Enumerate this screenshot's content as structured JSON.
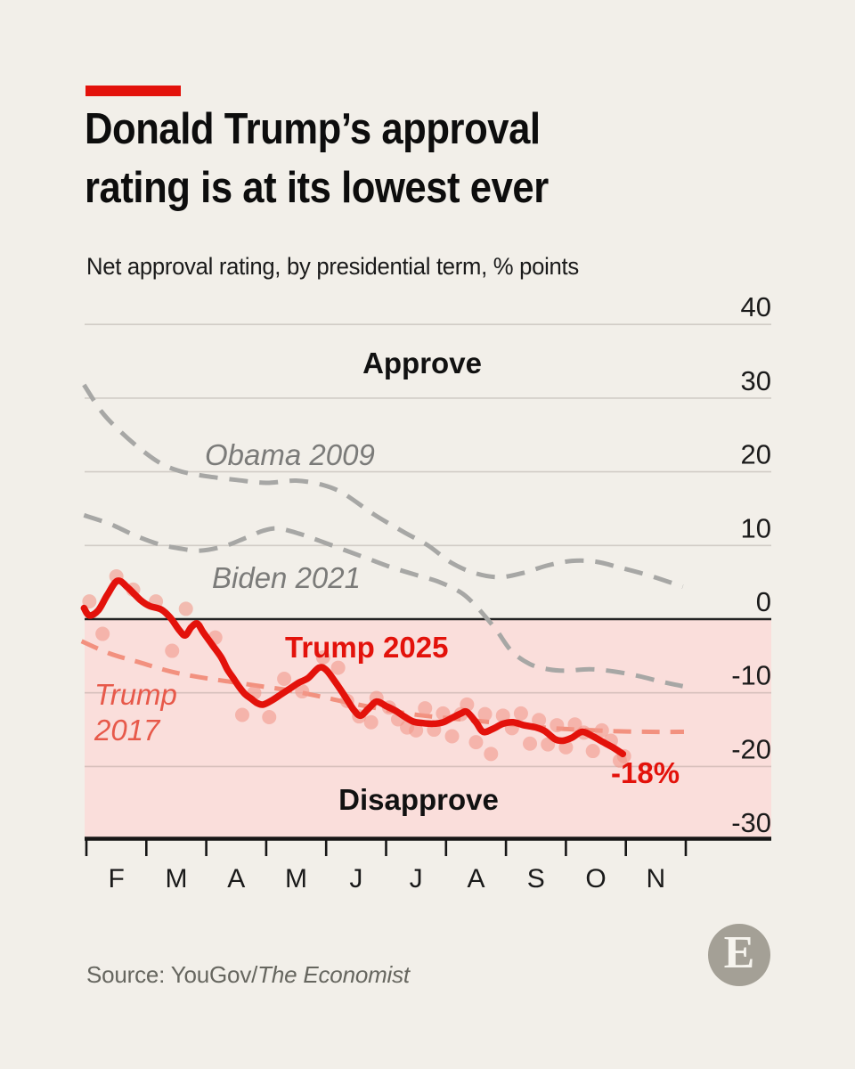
{
  "page": {
    "background_color": "#f2efe9",
    "accent_color": "#e3120b"
  },
  "header": {
    "title_line1": "Donald Trump’s approval",
    "title_line2": "rating is at its lowest ever",
    "subtitle": "Net approval rating, by presidential term, % points"
  },
  "annotations": {
    "approve": "Approve",
    "disapprove": "Disapprove",
    "obama": "Obama 2009",
    "biden": "Biden 2021",
    "trump2025": "Trump 2025",
    "trump2017_line1": "Trump",
    "trump2017_line2": "2017",
    "end_value": "-18%"
  },
  "footer": {
    "source_prefix": "Source: YouGov/",
    "source_publication": "The Economist",
    "logo_letter": "E"
  },
  "chart_data": {
    "type": "line",
    "title": "Donald Trump’s approval rating is at its lowest ever",
    "subtitle": "Net approval rating, by presidential term, % points",
    "x_unit": "months since Feb 1 of first year in office",
    "x_tick_labels": [
      "F",
      "M",
      "A",
      "M",
      "J",
      "J",
      "A",
      "S",
      "O",
      "N"
    ],
    "y_ticks": [
      40,
      30,
      20,
      10,
      0,
      -10,
      -20,
      -30
    ],
    "ylim": [
      -30,
      40
    ],
    "xlim": [
      -0.05,
      11.45
    ],
    "grid": "horizontal only",
    "zone_labels": {
      "positive": "Approve",
      "negative": "Disapprove"
    },
    "negative_zone_color": "#fadedb",
    "end_label": {
      "text": "-18%",
      "series": "Trump 2025",
      "x": 8.95,
      "y": -18.3
    },
    "series": [
      {
        "name": "Obama 2009",
        "style": "dashed",
        "color": "#a7a7a5",
        "width": 5,
        "dash": [
          21,
          13
        ],
        "points": [
          [
            -0.04,
            31.8
          ],
          [
            0.25,
            28.2
          ],
          [
            0.55,
            25.6
          ],
          [
            0.9,
            23.1
          ],
          [
            1.25,
            21.1
          ],
          [
            1.6,
            20.0
          ],
          [
            2.0,
            19.4
          ],
          [
            2.5,
            18.9
          ],
          [
            3.0,
            18.5
          ],
          [
            3.5,
            18.8
          ],
          [
            3.95,
            18.2
          ],
          [
            4.3,
            17.0
          ],
          [
            4.8,
            14.2
          ],
          [
            5.3,
            11.8
          ],
          [
            5.7,
            10.0
          ],
          [
            6.1,
            7.6
          ],
          [
            6.5,
            6.2
          ],
          [
            6.9,
            5.7
          ],
          [
            7.3,
            6.3
          ],
          [
            7.7,
            7.3
          ],
          [
            8.1,
            7.9
          ],
          [
            8.5,
            7.8
          ],
          [
            8.9,
            7.0
          ],
          [
            9.4,
            5.9
          ],
          [
            9.95,
            4.4
          ]
        ]
      },
      {
        "name": "Biden 2021",
        "style": "dashed",
        "color": "#a7a7a5",
        "width": 5,
        "dash": [
          21,
          13
        ],
        "points": [
          [
            -0.04,
            14.1
          ],
          [
            0.4,
            12.9
          ],
          [
            0.8,
            11.4
          ],
          [
            1.2,
            10.2
          ],
          [
            1.55,
            9.6
          ],
          [
            1.9,
            9.3
          ],
          [
            2.3,
            9.9
          ],
          [
            2.65,
            11.0
          ],
          [
            2.95,
            12.0
          ],
          [
            3.2,
            12.3
          ],
          [
            3.55,
            11.6
          ],
          [
            3.9,
            10.6
          ],
          [
            4.3,
            9.4
          ],
          [
            4.7,
            8.2
          ],
          [
            5.1,
            7.0
          ],
          [
            5.5,
            6.0
          ],
          [
            5.9,
            5.0
          ],
          [
            6.25,
            3.6
          ],
          [
            6.45,
            2.2
          ],
          [
            6.65,
            0.4
          ],
          [
            6.85,
            -1.6
          ],
          [
            7.1,
            -4.4
          ],
          [
            7.4,
            -6.1
          ],
          [
            7.7,
            -6.8
          ],
          [
            8.0,
            -7.0
          ],
          [
            8.4,
            -6.8
          ],
          [
            8.8,
            -7.1
          ],
          [
            9.2,
            -7.7
          ],
          [
            9.6,
            -8.5
          ],
          [
            9.95,
            -9.1
          ]
        ]
      },
      {
        "name": "Trump 2017",
        "style": "dashed",
        "color": "#f2917f",
        "width": 5,
        "dash": [
          20,
          12
        ],
        "points": [
          [
            -0.08,
            -3.0
          ],
          [
            0.4,
            -4.7
          ],
          [
            0.9,
            -5.9
          ],
          [
            1.4,
            -7.1
          ],
          [
            1.9,
            -7.9
          ],
          [
            2.4,
            -8.5
          ],
          [
            2.9,
            -9.1
          ],
          [
            3.4,
            -9.7
          ],
          [
            3.9,
            -10.5
          ],
          [
            4.35,
            -11.3
          ],
          [
            4.85,
            -12.1
          ],
          [
            5.35,
            -12.8
          ],
          [
            5.85,
            -13.3
          ],
          [
            6.4,
            -13.7
          ],
          [
            7.0,
            -14.2
          ],
          [
            7.6,
            -14.7
          ],
          [
            8.2,
            -15.0
          ],
          [
            8.8,
            -15.2
          ],
          [
            9.4,
            -15.3
          ],
          [
            9.97,
            -15.3
          ]
        ]
      },
      {
        "name": "Trump 2025",
        "style": "solid",
        "color": "#e3120b",
        "width": 7.5,
        "dash": null,
        "points": [
          [
            -0.04,
            1.5
          ],
          [
            0.05,
            0.5
          ],
          [
            0.2,
            1.2
          ],
          [
            0.35,
            3.3
          ],
          [
            0.52,
            5.2
          ],
          [
            0.7,
            4.2
          ],
          [
            0.9,
            2.6
          ],
          [
            1.05,
            1.8
          ],
          [
            1.25,
            1.3
          ],
          [
            1.4,
            0.2
          ],
          [
            1.55,
            -1.5
          ],
          [
            1.65,
            -2.2
          ],
          [
            1.75,
            -1.1
          ],
          [
            1.85,
            -0.6
          ],
          [
            1.95,
            -1.8
          ],
          [
            2.1,
            -3.5
          ],
          [
            2.25,
            -5.2
          ],
          [
            2.35,
            -6.8
          ],
          [
            2.45,
            -8.0
          ],
          [
            2.55,
            -9.2
          ],
          [
            2.65,
            -10.2
          ],
          [
            2.75,
            -10.8
          ],
          [
            2.85,
            -11.4
          ],
          [
            2.95,
            -11.6
          ],
          [
            3.1,
            -11.0
          ],
          [
            3.25,
            -10.2
          ],
          [
            3.4,
            -9.4
          ],
          [
            3.55,
            -8.6
          ],
          [
            3.7,
            -8.0
          ],
          [
            3.88,
            -6.6
          ],
          [
            4.0,
            -6.9
          ],
          [
            4.15,
            -8.5
          ],
          [
            4.3,
            -10.3
          ],
          [
            4.45,
            -12.2
          ],
          [
            4.57,
            -13.1
          ],
          [
            4.7,
            -12.2
          ],
          [
            4.84,
            -11.2
          ],
          [
            5.0,
            -11.8
          ],
          [
            5.15,
            -12.4
          ],
          [
            5.3,
            -13.2
          ],
          [
            5.45,
            -13.9
          ],
          [
            5.6,
            -14.1
          ],
          [
            5.78,
            -14.2
          ],
          [
            5.95,
            -14.0
          ],
          [
            6.1,
            -13.4
          ],
          [
            6.25,
            -12.8
          ],
          [
            6.35,
            -12.6
          ],
          [
            6.5,
            -14.0
          ],
          [
            6.62,
            -15.3
          ],
          [
            6.78,
            -14.9
          ],
          [
            6.95,
            -14.2
          ],
          [
            7.12,
            -14.0
          ],
          [
            7.3,
            -14.4
          ],
          [
            7.5,
            -14.7
          ],
          [
            7.65,
            -15.2
          ],
          [
            7.82,
            -16.3
          ],
          [
            7.95,
            -16.5
          ],
          [
            8.1,
            -16.1
          ],
          [
            8.27,
            -15.3
          ],
          [
            8.45,
            -15.9
          ],
          [
            8.6,
            -16.6
          ],
          [
            8.78,
            -17.4
          ],
          [
            8.95,
            -18.3
          ]
        ]
      }
    ],
    "scatter": {
      "name": "Trump 2025 individual polls",
      "color": "#f2988a",
      "opacity": 0.6,
      "radius": 8,
      "points": [
        [
          0.05,
          2.4
        ],
        [
          0.27,
          -2.0
        ],
        [
          0.5,
          5.8
        ],
        [
          0.78,
          4.0
        ],
        [
          1.16,
          2.4
        ],
        [
          1.43,
          -4.3
        ],
        [
          1.66,
          1.4
        ],
        [
          2.15,
          -2.5
        ],
        [
          2.6,
          -13.0
        ],
        [
          2.8,
          -10.0
        ],
        [
          3.05,
          -13.3
        ],
        [
          3.3,
          -8.1
        ],
        [
          3.6,
          -9.8
        ],
        [
          3.95,
          -5.2
        ],
        [
          4.2,
          -6.6
        ],
        [
          4.35,
          -11.1
        ],
        [
          4.55,
          -13.2
        ],
        [
          4.75,
          -14.0
        ],
        [
          4.84,
          -10.7
        ],
        [
          5.05,
          -12.0
        ],
        [
          5.2,
          -13.6
        ],
        [
          5.35,
          -14.7
        ],
        [
          5.5,
          -15.1
        ],
        [
          5.65,
          -12.1
        ],
        [
          5.8,
          -15.0
        ],
        [
          5.95,
          -12.8
        ],
        [
          6.1,
          -15.9
        ],
        [
          6.25,
          -12.9
        ],
        [
          6.35,
          -11.6
        ],
        [
          6.5,
          -16.7
        ],
        [
          6.65,
          -12.9
        ],
        [
          6.75,
          -18.3
        ],
        [
          6.95,
          -13.1
        ],
        [
          7.1,
          -14.8
        ],
        [
          7.25,
          -12.8
        ],
        [
          7.4,
          -16.9
        ],
        [
          7.55,
          -13.7
        ],
        [
          7.7,
          -17.0
        ],
        [
          7.85,
          -14.4
        ],
        [
          8.0,
          -17.4
        ],
        [
          8.15,
          -14.3
        ],
        [
          8.3,
          -15.4
        ],
        [
          8.45,
          -17.9
        ],
        [
          8.6,
          -15.1
        ],
        [
          8.75,
          -16.5
        ],
        [
          8.9,
          -19.2
        ],
        [
          8.97,
          -18.6
        ]
      ]
    }
  }
}
